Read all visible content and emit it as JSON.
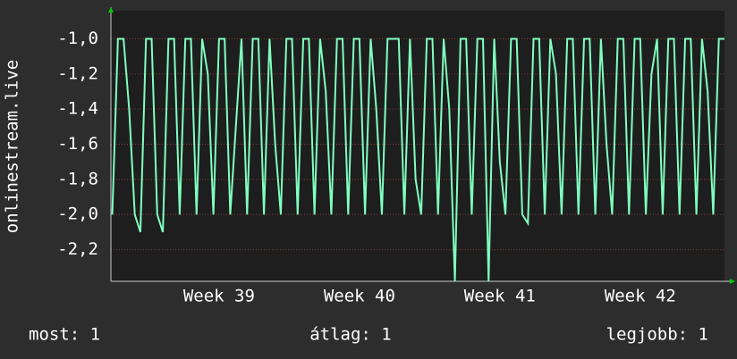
{
  "chart_data": {
    "type": "line",
    "y_label": "onlinestream.live",
    "stats": [
      "most: 1",
      "átlag: 1",
      "legjobb: 1"
    ],
    "color": "#80ffc0",
    "grid": true,
    "xlim": [
      38.73,
      43.1
    ],
    "xticks": [
      {
        "value": 39.5,
        "label": "Week 39"
      },
      {
        "value": 40.5,
        "label": "Week 40"
      },
      {
        "value": 41.5,
        "label": "Week 41"
      },
      {
        "value": 42.5,
        "label": "Week 42"
      }
    ],
    "ylim": [
      -2.38,
      -0.84
    ],
    "yticks": [
      {
        "value": -1.0,
        "label": "-1,0"
      },
      {
        "value": -1.2,
        "label": "-1,2"
      },
      {
        "value": -1.4,
        "label": "-1,4"
      },
      {
        "value": -1.6,
        "label": "-1,6"
      },
      {
        "value": -1.8,
        "label": "-1,8"
      },
      {
        "value": -2.0,
        "label": "-2,0"
      },
      {
        "value": -2.2,
        "label": "-2,2"
      }
    ],
    "x": [
      38.74,
      38.78,
      38.82,
      38.86,
      38.9,
      38.94,
      38.98,
      39.02,
      39.06,
      39.1,
      39.14,
      39.18,
      39.22,
      39.26,
      39.3,
      39.34,
      39.38,
      39.42,
      39.46,
      39.5,
      39.54,
      39.58,
      39.62,
      39.66,
      39.7,
      39.74,
      39.78,
      39.82,
      39.86,
      39.9,
      39.94,
      39.98,
      40.02,
      40.06,
      40.1,
      40.14,
      40.18,
      40.22,
      40.26,
      40.3,
      40.34,
      40.38,
      40.42,
      40.46,
      40.5,
      40.54,
      40.58,
      40.62,
      40.66,
      40.7,
      40.74,
      40.78,
      40.82,
      40.86,
      40.9,
      40.94,
      40.98,
      41.02,
      41.06,
      41.1,
      41.14,
      41.18,
      41.22,
      41.26,
      41.3,
      41.34,
      41.38,
      41.42,
      41.46,
      41.5,
      41.54,
      41.58,
      41.62,
      41.66,
      41.7,
      41.74,
      41.78,
      41.82,
      41.86,
      41.9,
      41.94,
      41.98,
      42.02,
      42.06,
      42.1,
      42.14,
      42.18,
      42.22,
      42.26,
      42.3,
      42.34,
      42.38,
      42.42,
      42.46,
      42.5,
      42.54,
      42.58,
      42.62,
      42.66,
      42.7,
      42.74,
      42.78,
      42.82,
      42.86,
      42.9,
      42.94,
      42.98,
      43.02,
      43.06,
      43.1
    ],
    "values": [
      -2,
      -1,
      -1,
      -1.4,
      -2,
      -2.1,
      -1,
      -1,
      -2,
      -2.1,
      -1,
      -1,
      -2,
      -1,
      -1,
      -2,
      -1,
      -1.2,
      -2,
      -1,
      -1,
      -2,
      -1.5,
      -1,
      -2,
      -1,
      -1,
      -2,
      -1,
      -1.6,
      -2,
      -1,
      -1,
      -2,
      -1,
      -1,
      -2,
      -1,
      -1.3,
      -2,
      -1,
      -1,
      -2,
      -1,
      -1,
      -2,
      -1,
      -1.4,
      -2,
      -1,
      -1,
      -1,
      -2,
      -1,
      -1.8,
      -2,
      -1,
      -1,
      -2,
      -1,
      -1.4,
      -2.38,
      -1,
      -1,
      -2,
      -1,
      -1,
      -2.38,
      -1,
      -1.7,
      -2,
      -1,
      -1,
      -2,
      -2.05,
      -1,
      -1,
      -2,
      -1,
      -1.2,
      -2,
      -1,
      -1,
      -2,
      -1,
      -1,
      -2,
      -1,
      -1.6,
      -2,
      -1,
      -1,
      -2,
      -1,
      -1,
      -2,
      -1.2,
      -1,
      -2,
      -1,
      -1,
      -2,
      -1,
      -1,
      -2,
      -1,
      -1.3,
      -2,
      -1,
      -1
    ]
  }
}
